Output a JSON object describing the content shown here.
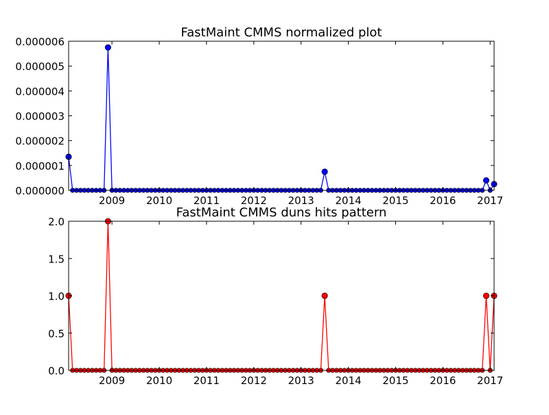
{
  "chart_data": [
    {
      "type": "line",
      "title": "FastMaint CMMS normalized plot",
      "xlabel": "",
      "ylabel": "",
      "x_range": [
        "2008-02",
        "2017-02"
      ],
      "ylim": [
        0,
        6e-06
      ],
      "y_ticks": [
        "0.000000",
        "0.000001",
        "0.000002",
        "0.000003",
        "0.000004",
        "0.000005",
        "0.000006"
      ],
      "x_ticks": [
        "2009",
        "2010",
        "2011",
        "2012",
        "2013",
        "2014",
        "2015",
        "2016",
        "2017"
      ],
      "grid": false,
      "legend": "none",
      "series": [
        {
          "color": "#0000ff",
          "marker": "circle",
          "points": [
            {
              "x": "2008-02",
              "y": 1.35e-06
            },
            {
              "x": "2008-12",
              "y": 5.75e-06
            },
            {
              "x": "2013-07",
              "y": 7.5e-07
            },
            {
              "x": "2016-12",
              "y": 4e-07
            },
            {
              "x": "2017-02",
              "y": 2.5e-07
            }
          ],
          "baseline": 0,
          "note_zero": "all other months are 0"
        }
      ]
    },
    {
      "type": "line",
      "title": "FastMaint CMMS duns hits pattern",
      "xlabel": "",
      "ylabel": "",
      "x_range": [
        "2008-02",
        "2017-02"
      ],
      "ylim": [
        0,
        2
      ],
      "y_ticks": [
        "0.0",
        "0.5",
        "1.0",
        "1.5",
        "2.0"
      ],
      "x_ticks": [
        "2009",
        "2010",
        "2011",
        "2012",
        "2013",
        "2014",
        "2015",
        "2016",
        "2017"
      ],
      "grid": false,
      "legend": "none",
      "series": [
        {
          "color": "#ff0000",
          "marker": "circle",
          "points": [
            {
              "x": "2008-02",
              "y": 1
            },
            {
              "x": "2008-12",
              "y": 2
            },
            {
              "x": "2013-07",
              "y": 1
            },
            {
              "x": "2016-12",
              "y": 1
            },
            {
              "x": "2017-02",
              "y": 1
            }
          ],
          "baseline": 0
        }
      ]
    }
  ]
}
